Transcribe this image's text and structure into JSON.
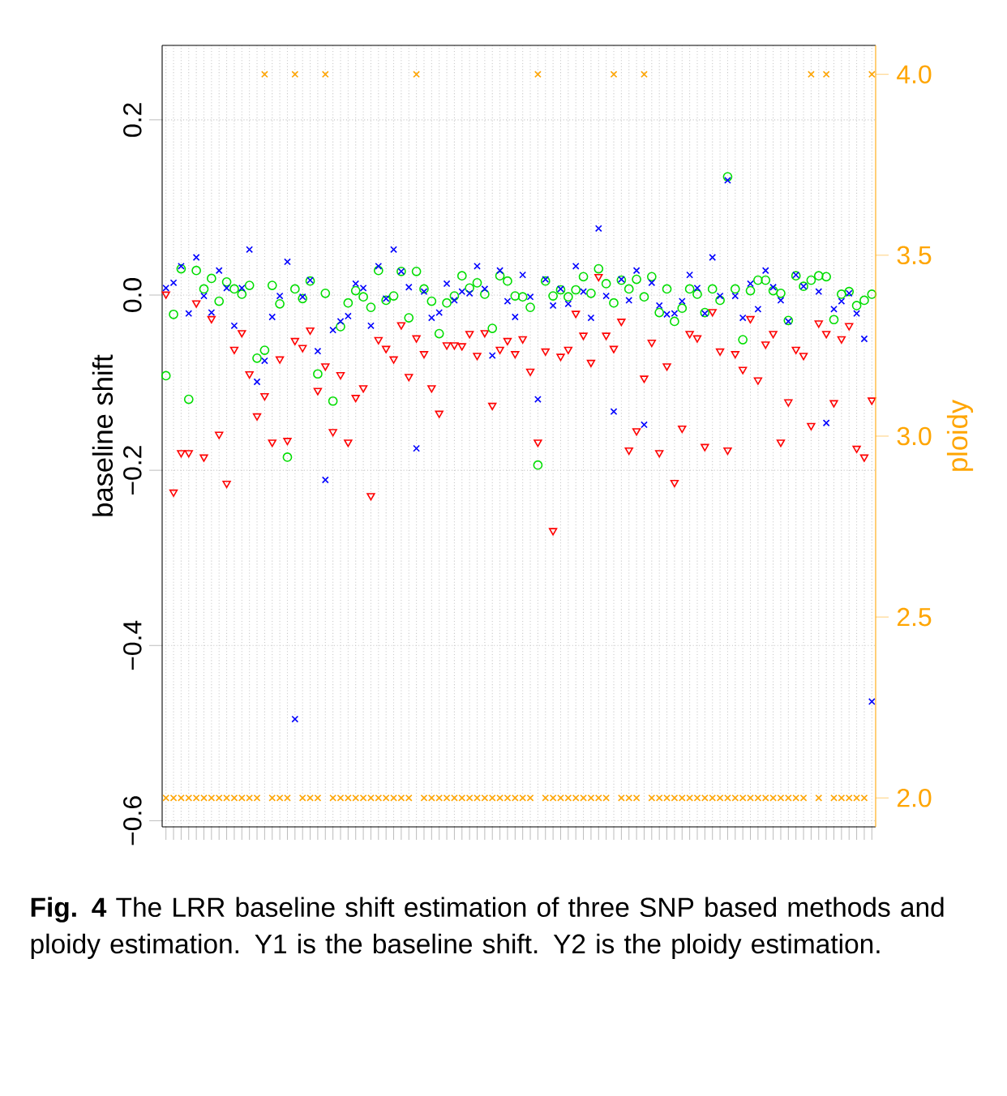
{
  "chart_data": {
    "type": "scatter",
    "ylabel": "baseline shift",
    "y2label": "ploidy",
    "categories": [
      null,
      null,
      null,
      null,
      null,
      null,
      null,
      null,
      null,
      null,
      null,
      null,
      null,
      null,
      null,
      null,
      null,
      null,
      null,
      null,
      null,
      null,
      null,
      null,
      null,
      null,
      null,
      null,
      null,
      null,
      null,
      null,
      null,
      null,
      null,
      null,
      null,
      null,
      null,
      null,
      null,
      null,
      null,
      null,
      null,
      null,
      null,
      null,
      null,
      null,
      null,
      null,
      null,
      null,
      null,
      null,
      null,
      null,
      null,
      null,
      null,
      null,
      null,
      null,
      null,
      null,
      null,
      null,
      null,
      null,
      null,
      null,
      null,
      null,
      null,
      null,
      null,
      null,
      null,
      null,
      null,
      null,
      null,
      null,
      null,
      null,
      null,
      null,
      null,
      null,
      null,
      null,
      null,
      null
    ],
    "series": [
      {
        "color": "#ffa500",
        "marker": "cross",
        "axis": "y2",
        "values": [
          2,
          2,
          2,
          2,
          2,
          2,
          2,
          2,
          2,
          2,
          2,
          2,
          2,
          4,
          2,
          2,
          2,
          4,
          2,
          2,
          2,
          4,
          2,
          2,
          2,
          2,
          2,
          2,
          2,
          2,
          2,
          2,
          2,
          4,
          2,
          2,
          2,
          2,
          2,
          2,
          2,
          2,
          2,
          2,
          2,
          2,
          2,
          2,
          2,
          4,
          2,
          2,
          2,
          2,
          2,
          2,
          2,
          2,
          2,
          4,
          2,
          2,
          2,
          4,
          2,
          2,
          2,
          2,
          2,
          2,
          2,
          2,
          2,
          2,
          2,
          2,
          2,
          2,
          2,
          2,
          2,
          2,
          2,
          2,
          2,
          4,
          2,
          4,
          2,
          2,
          2,
          2,
          2,
          4
        ]
      },
      {
        "color": "#ff0000",
        "marker": "triangle",
        "values": [
          0.001,
          -0.225,
          -0.18,
          -0.18,
          -0.009,
          -0.185,
          -0.027,
          -0.159,
          -0.215,
          -0.062,
          -0.043,
          -0.09,
          -0.138,
          -0.115,
          -0.168,
          -0.073,
          -0.166,
          -0.052,
          -0.06,
          -0.04,
          -0.109,
          -0.081,
          -0.156,
          -0.091,
          -0.168,
          -0.117,
          -0.106,
          -0.229,
          -0.051,
          -0.061,
          -0.073,
          -0.034,
          -0.093,
          -0.049,
          -0.067,
          -0.106,
          -0.135,
          -0.057,
          -0.057,
          -0.058,
          -0.044,
          -0.069,
          -0.043,
          -0.126,
          -0.062,
          -0.052,
          -0.067,
          -0.05,
          -0.087,
          -0.168,
          -0.064,
          -0.269,
          -0.07,
          -0.062,
          -0.021,
          -0.046,
          -0.077,
          0.021,
          -0.046,
          -0.061,
          -0.03,
          -0.177,
          -0.155,
          -0.095,
          -0.054,
          -0.18,
          -0.081,
          -0.214,
          -0.152,
          -0.044,
          -0.049,
          -0.173,
          -0.019,
          -0.064,
          -0.177,
          -0.067,
          -0.085,
          -0.027,
          -0.097,
          -0.056,
          -0.044,
          -0.168,
          -0.122,
          -0.062,
          -0.069,
          -0.149,
          -0.032,
          -0.044,
          -0.123,
          -0.05,
          -0.035,
          -0.175,
          -0.185,
          -0.12
        ]
      },
      {
        "color": "#00dd00",
        "marker": "circle",
        "values": [
          -0.092,
          -0.022,
          0.03,
          -0.119,
          0.028,
          0.007,
          0.019,
          -0.007,
          0.015,
          0.007,
          0.001,
          0.011,
          -0.072,
          -0.063,
          0.011,
          -0.01,
          -0.185,
          0.007,
          -0.004,
          0.016,
          -0.09,
          0.002,
          -0.121,
          -0.036,
          -0.009,
          0.005,
          -0.002,
          -0.014,
          0.028,
          -0.006,
          -0.001,
          0.027,
          -0.026,
          0.027,
          0.007,
          -0.007,
          -0.044,
          -0.009,
          -0.001,
          0.022,
          0.008,
          0.014,
          0.001,
          -0.038,
          0.022,
          0.016,
          -0.001,
          -0.002,
          -0.014,
          -0.194,
          0.016,
          -0.001,
          0.006,
          -0.002,
          0.006,
          0.021,
          0.002,
          0.03,
          0.013,
          -0.009,
          0.017,
          0.007,
          0.018,
          -0.002,
          0.021,
          -0.02,
          0.007,
          -0.03,
          -0.015,
          0.007,
          0.001,
          -0.02,
          0.007,
          -0.006,
          0.135,
          0.007,
          -0.051,
          0.005,
          0.017,
          0.017,
          0.005,
          0.002,
          -0.029,
          0.022,
          0.01,
          0.017,
          0.022,
          0.021,
          -0.028,
          0.001,
          0.004,
          -0.012,
          -0.006,
          0.001
        ]
      },
      {
        "color": "#0000ff",
        "marker": "cross",
        "values": [
          0.008,
          0.014,
          0.033,
          -0.021,
          0.043,
          -0.001,
          -0.02,
          0.028,
          0.008,
          -0.035,
          0.008,
          0.052,
          -0.099,
          -0.075,
          -0.025,
          -0.001,
          0.038,
          -0.484,
          -0.002,
          0.017,
          -0.064,
          -0.211,
          -0.04,
          -0.03,
          -0.024,
          0.013,
          0.008,
          -0.035,
          0.033,
          -0.004,
          0.052,
          0.027,
          0.009,
          -0.175,
          0.004,
          -0.026,
          -0.02,
          0.013,
          -0.006,
          0.004,
          0.002,
          0.033,
          0.007,
          -0.069,
          0.028,
          -0.007,
          -0.025,
          0.023,
          -0.002,
          -0.119,
          0.018,
          -0.012,
          0.007,
          -0.01,
          0.033,
          0.004,
          -0.026,
          0.076,
          -0.001,
          -0.133,
          0.018,
          -0.006,
          0.028,
          -0.148,
          0.014,
          -0.012,
          -0.022,
          -0.021,
          -0.007,
          0.023,
          0.008,
          -0.021,
          0.043,
          -0.001,
          0.131,
          -0.001,
          -0.026,
          0.013,
          -0.016,
          0.028,
          0.009,
          -0.006,
          -0.03,
          0.023,
          0.01,
          null,
          0.004,
          -0.146,
          -0.016,
          -0.007,
          0.002,
          -0.021,
          -0.05,
          -0.464
        ]
      }
    ],
    "ylim": [
      -0.607,
      0.285
    ],
    "yticks": [
      {
        "value": -0.6,
        "label": "−0.6"
      },
      {
        "value": -0.4,
        "label": "−0.4"
      },
      {
        "value": -0.2,
        "label": "−0.2"
      },
      {
        "value": 0,
        "label": "0.0"
      },
      {
        "value": 0.2,
        "label": "0.2"
      }
    ],
    "y2lim": [
      1.92,
      4.08
    ],
    "y2ticks": [
      {
        "value": 2,
        "label": "2.0"
      },
      {
        "value": 2.5,
        "label": "2.5"
      },
      {
        "value": 3,
        "label": "3.0"
      },
      {
        "value": 3.5,
        "label": "3.5"
      },
      {
        "value": 4,
        "label": "4.0"
      }
    ],
    "grid": true,
    "tick_labels": "y",
    "annotations": [
      "**Fig. 4** The LRR baseline shift estimation of three SNP based methods and ploidy estimation. Y1 is the baseline shift. Y2 is the ploidy estimation."
    ]
  }
}
